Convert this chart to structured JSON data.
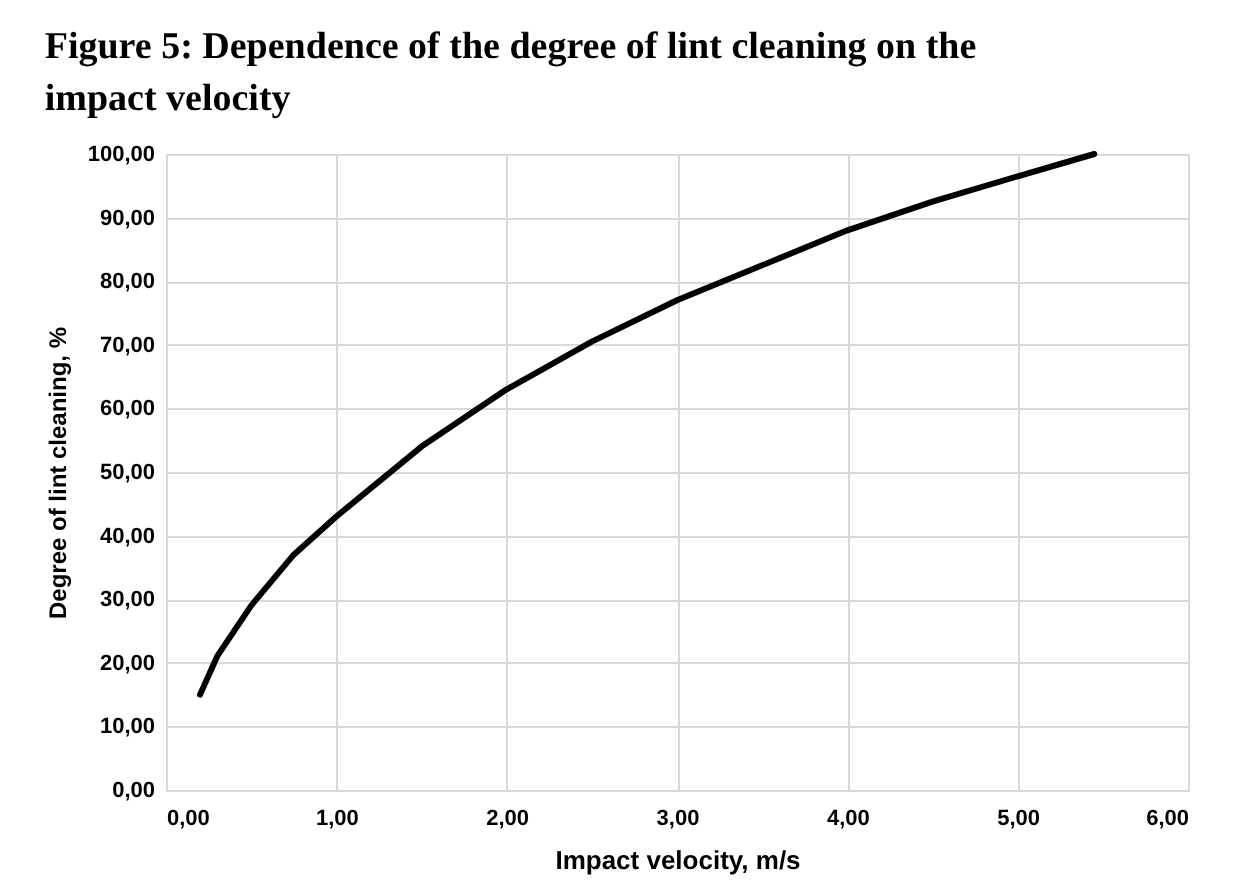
{
  "chart_data": {
    "type": "line",
    "title": "Figure 5: Dependence of the degree of lint cleaning on the impact velocity",
    "xlabel": "Impact velocity, m/s",
    "ylabel": "Degree of lint cleaning, %",
    "x": [
      0.2,
      0.3,
      0.5,
      0.75,
      1.0,
      1.5,
      2.0,
      2.5,
      3.0,
      3.5,
      4.0,
      4.5,
      5.0,
      5.45
    ],
    "series": [
      {
        "color": "#000000",
        "values": [
          15,
          21,
          29,
          37,
          43,
          54,
          63,
          70.5,
          77,
          82.5,
          88,
          92.5,
          96.5,
          100
        ]
      }
    ],
    "xlim": [
      0,
      6
    ],
    "ylim": [
      0,
      100
    ],
    "xticks": [
      {
        "value": 0,
        "label": "0,00"
      },
      {
        "value": 1,
        "label": "1,00"
      },
      {
        "value": 2,
        "label": "2,00"
      },
      {
        "value": 3,
        "label": "3,00"
      },
      {
        "value": 4,
        "label": "4,00"
      },
      {
        "value": 5,
        "label": "5,00"
      },
      {
        "value": 6,
        "label": "6,00"
      }
    ],
    "yticks": [
      {
        "value": 0,
        "label": "0,00"
      },
      {
        "value": 10,
        "label": "10,00"
      },
      {
        "value": 20,
        "label": "20,00"
      },
      {
        "value": 30,
        "label": "30,00"
      },
      {
        "value": 40,
        "label": "40,00"
      },
      {
        "value": 50,
        "label": "50,00"
      },
      {
        "value": 60,
        "label": "60,00"
      },
      {
        "value": 70,
        "label": "70,00"
      },
      {
        "value": 80,
        "label": "80,00"
      },
      {
        "value": 90,
        "label": "90,00"
      },
      {
        "value": 100,
        "label": "100,00"
      }
    ],
    "grid": true,
    "legend": false,
    "marker": "none",
    "line_style": "solid"
  }
}
